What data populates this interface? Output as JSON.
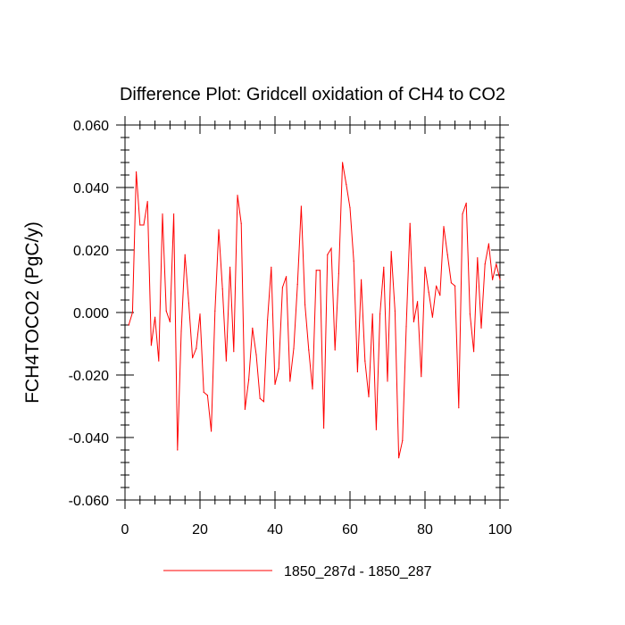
{
  "chart_data": {
    "type": "line",
    "title": "Difference Plot: Gridcell oxidation of CH4 to CO2",
    "xlabel": "",
    "ylabel": "FCH4TOCO2  (PgC/y)",
    "xlim": [
      0,
      100
    ],
    "ylim": [
      -0.06,
      0.06
    ],
    "xticks": [
      0,
      20,
      40,
      60,
      80,
      100
    ],
    "xtick_labels": [
      "0",
      "20",
      "40",
      "60",
      "80",
      "100"
    ],
    "yticks": [
      -0.06,
      -0.04,
      -0.02,
      0.0,
      0.02,
      0.04,
      0.06
    ],
    "ytick_labels": [
      "-0.060",
      "-0.040",
      "-0.020",
      "0.000",
      "0.020",
      "0.040",
      "0.060"
    ],
    "grid": false,
    "legend_position": "bottom-center",
    "series": [
      {
        "name": "1850_287d - 1850_287",
        "color": "#ff0000",
        "x": [
          1,
          2,
          3,
          4,
          5,
          6,
          7,
          8,
          9,
          10,
          11,
          12,
          13,
          14,
          15,
          16,
          17,
          18,
          19,
          20,
          21,
          22,
          23,
          24,
          25,
          26,
          27,
          28,
          29,
          30,
          31,
          32,
          33,
          34,
          35,
          36,
          37,
          38,
          39,
          40,
          41,
          42,
          43,
          44,
          45,
          46,
          47,
          48,
          49,
          50,
          51,
          52,
          53,
          54,
          55,
          56,
          57,
          58,
          59,
          60,
          61,
          62,
          63,
          64,
          65,
          66,
          67,
          68,
          69,
          70,
          71,
          72,
          73,
          74,
          75,
          76,
          77,
          78,
          79,
          80,
          81,
          82,
          83,
          84,
          85,
          86,
          87,
          88,
          89,
          90,
          91,
          92,
          93,
          94,
          95,
          96,
          97,
          98,
          99,
          100
        ],
        "values": [
          -0.004,
          0.0,
          0.045,
          0.028,
          0.028,
          0.0355,
          -0.0105,
          -0.0015,
          -0.0155,
          0.0315,
          0.0005,
          -0.003,
          0.0315,
          -0.044,
          -0.006,
          0.0185,
          0.003,
          -0.0145,
          -0.0115,
          -0.0005,
          -0.0255,
          -0.0265,
          -0.038,
          0.0005,
          0.0265,
          0.0075,
          -0.0155,
          0.0145,
          -0.0125,
          0.0375,
          0.0285,
          -0.031,
          -0.0215,
          -0.005,
          -0.0135,
          -0.0275,
          -0.0285,
          -0.0025,
          0.0145,
          -0.023,
          -0.018,
          0.008,
          0.0115,
          -0.022,
          -0.0115,
          0.009,
          0.034,
          0.0025,
          -0.012,
          -0.0245,
          0.0135,
          0.0135,
          -0.037,
          0.0185,
          0.0205,
          -0.012,
          0.0125,
          0.048,
          0.041,
          0.0335,
          0.0165,
          -0.019,
          0.0105,
          -0.0155,
          -0.027,
          -0.0005,
          -0.0375,
          -0.0005,
          0.0145,
          -0.022,
          0.0195,
          0.0005,
          -0.0465,
          -0.041,
          -0.0045,
          0.0285,
          -0.003,
          0.0035,
          -0.0205,
          0.0145,
          0.0065,
          -0.0015,
          0.0085,
          0.0055,
          0.0275,
          0.0185,
          0.0095,
          0.0085,
          -0.0305,
          0.0315,
          0.035,
          -0.0005,
          -0.0125,
          0.0175,
          -0.005,
          0.0155,
          0.022,
          0.0105,
          0.0155,
          0.0105
        ]
      }
    ]
  }
}
